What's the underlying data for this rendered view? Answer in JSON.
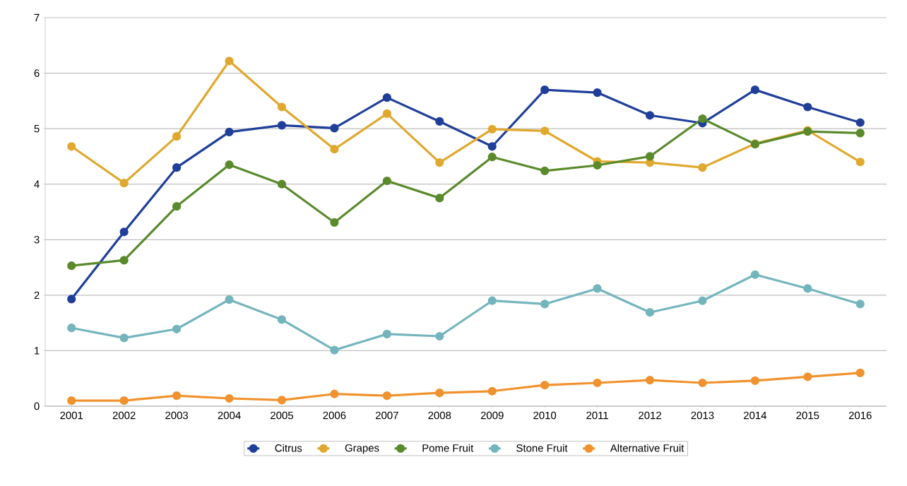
{
  "chart_data": {
    "type": "line",
    "categories": [
      "2001",
      "2002",
      "2003",
      "2004",
      "2005",
      "2006",
      "2007",
      "2008",
      "2009",
      "2010",
      "2011",
      "2012",
      "2013",
      "2014",
      "2015",
      "2016"
    ],
    "series": [
      {
        "name": "Citrus",
        "color": "#1f3f99",
        "values": [
          1.93,
          3.14,
          4.3,
          4.94,
          5.06,
          5.01,
          5.56,
          5.13,
          4.68,
          5.7,
          5.65,
          5.24,
          5.1,
          5.7,
          5.39,
          5.11
        ]
      },
      {
        "name": "Grapes",
        "color": "#e0a82e",
        "values": [
          4.68,
          4.02,
          4.86,
          6.22,
          5.39,
          4.63,
          5.27,
          4.39,
          4.99,
          4.96,
          4.41,
          4.39,
          4.3,
          4.73,
          4.97,
          4.4
        ]
      },
      {
        "name": "Pome Fruit",
        "color": "#5a8a2c",
        "values": [
          2.53,
          2.63,
          3.6,
          4.35,
          4.0,
          3.31,
          4.06,
          3.75,
          4.49,
          4.24,
          4.34,
          4.5,
          5.18,
          4.72,
          4.95,
          4.92
        ]
      },
      {
        "name": "Stone Fruit",
        "color": "#74b5bd",
        "values": [
          1.41,
          1.23,
          1.39,
          1.92,
          1.56,
          1.01,
          1.3,
          1.26,
          1.9,
          1.84,
          2.12,
          1.69,
          1.9,
          2.37,
          2.12,
          1.84
        ]
      },
      {
        "name": "Alternative Fruit",
        "color": "#f0922e",
        "values": [
          0.1,
          0.1,
          0.19,
          0.14,
          0.11,
          0.22,
          0.19,
          0.24,
          0.27,
          0.38,
          0.42,
          0.47,
          0.42,
          0.46,
          0.53,
          0.6
        ]
      }
    ],
    "ylim": [
      0,
      7
    ],
    "yticks": [
      0,
      1,
      2,
      3,
      4,
      5,
      6,
      7
    ],
    "grid": "y",
    "legend": "bottom",
    "marker": "circle",
    "line_style": "solid"
  }
}
